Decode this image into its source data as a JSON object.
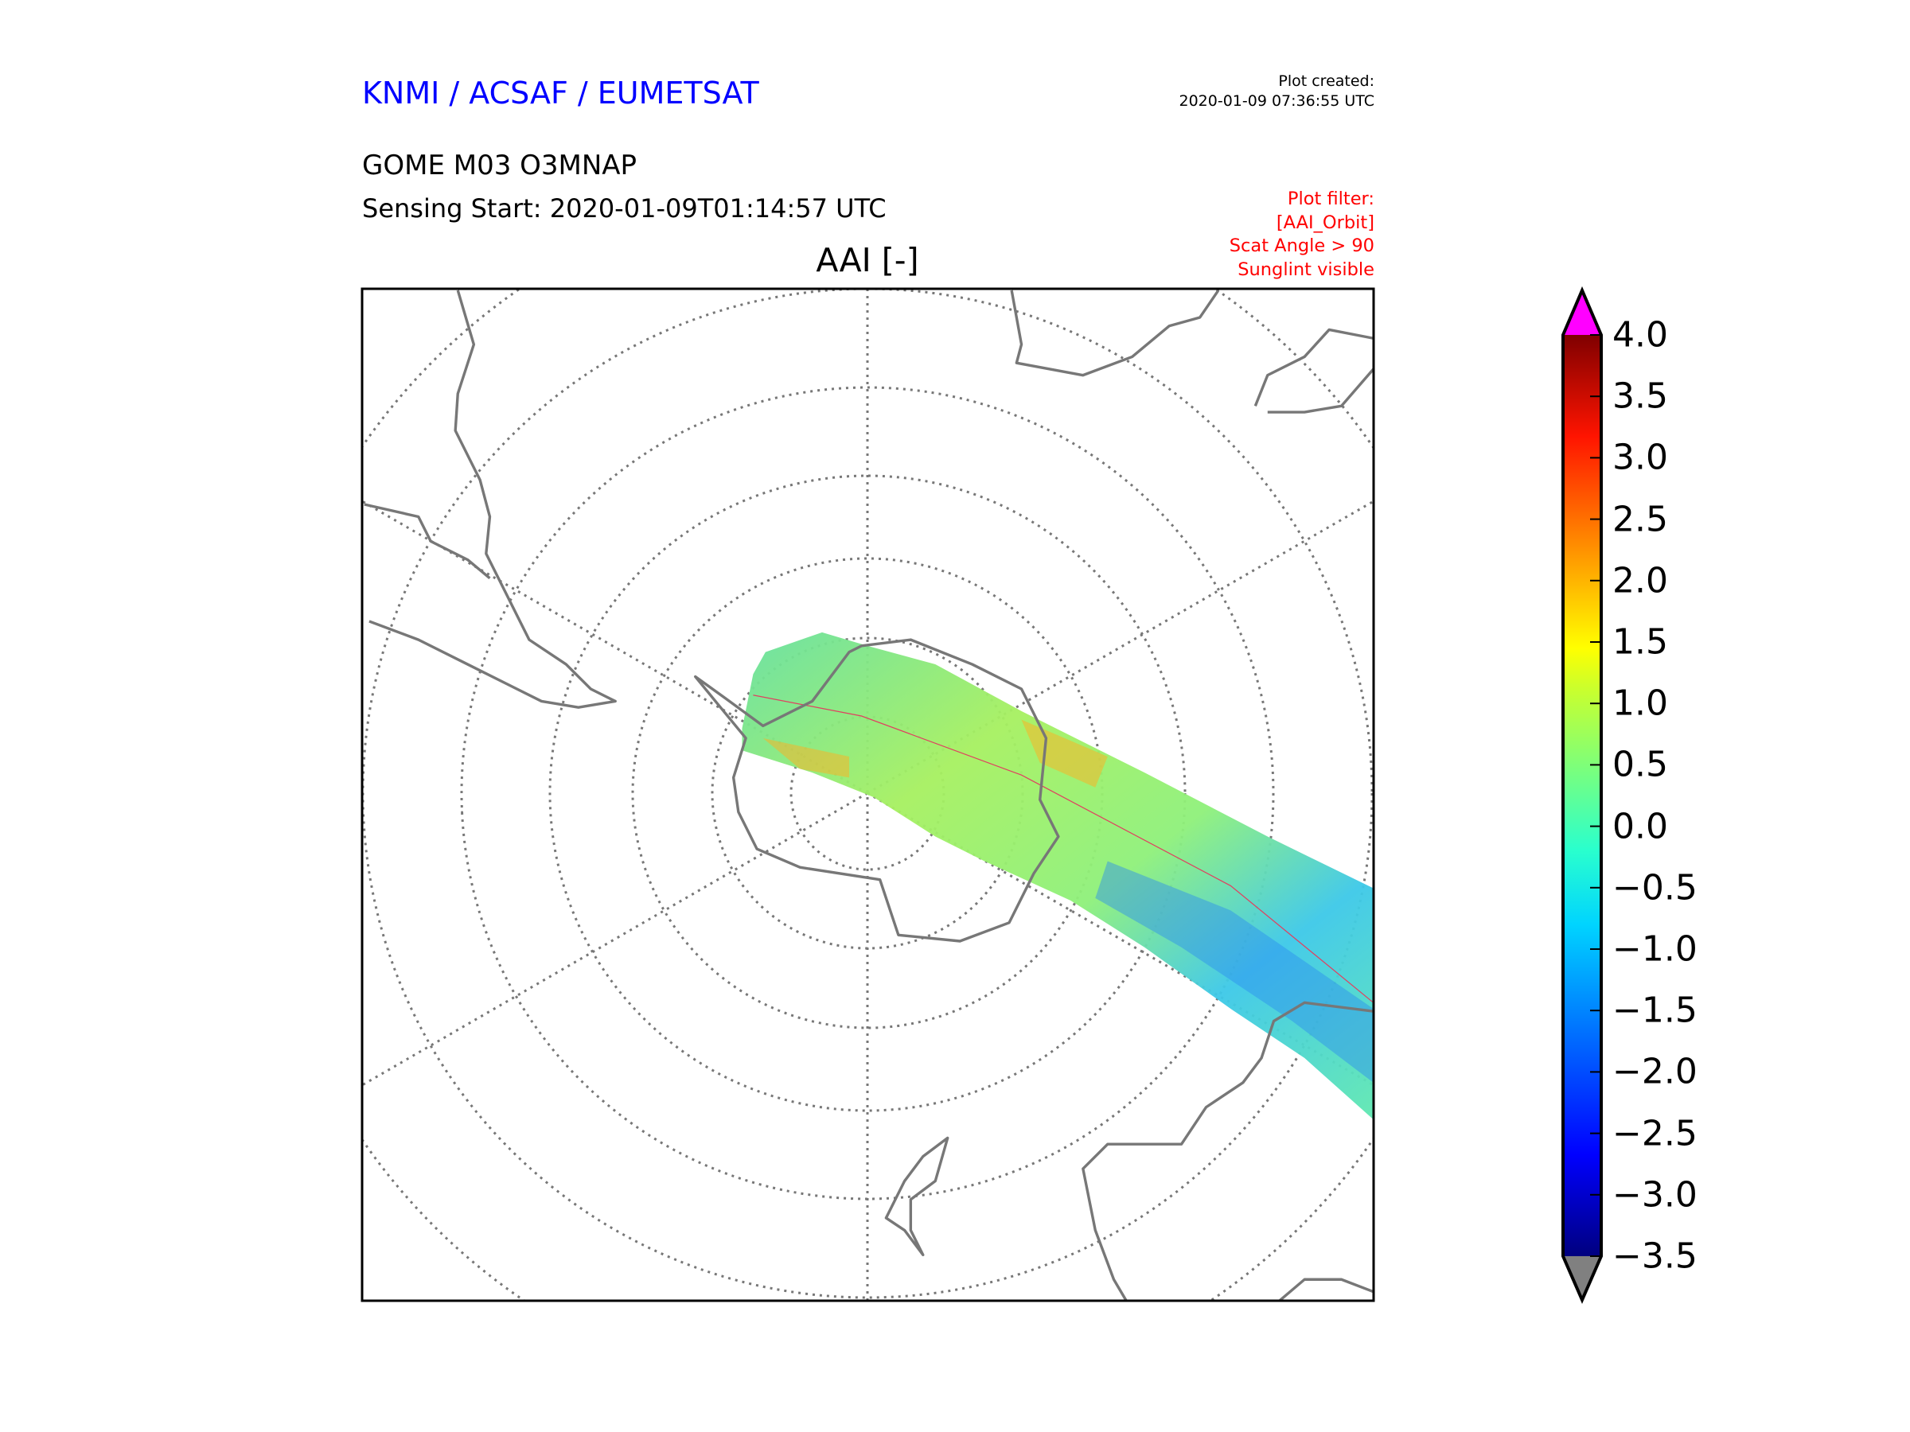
{
  "header": {
    "organization": "KNMI / ACSAF / EUMETSAT",
    "created_label": "Plot created:",
    "created_time": "2020-01-09 07:36:55 UTC",
    "product": "GOME M03 O3MNAP",
    "sensing_start": "Sensing Start: 2020-01-09T01:14:57 UTC",
    "filter": [
      "Plot filter:",
      "[AAI_Orbit]",
      "Scat Angle > 90",
      "Sunglint visible"
    ]
  },
  "chart_data": {
    "type": "heatmap",
    "title": "AAI [-]",
    "projection": "south polar stereographic",
    "colorbar": {
      "min": -3.5,
      "max": 4.0,
      "ticks": [
        "4.0",
        "3.5",
        "3.0",
        "2.5",
        "2.0",
        "1.5",
        "1.0",
        "0.5",
        "0.0",
        "−0.5",
        "−1.0",
        "−1.5",
        "−2.0",
        "−2.5",
        "−3.0",
        "−3.5"
      ],
      "over_color": "#ff00ff",
      "under_color": "#808080",
      "colormap": "jet"
    },
    "swath_typical_range": [
      -1.5,
      1.5
    ]
  },
  "colors": {
    "coast": "#777777",
    "grid": "#777777",
    "org": "#0000ff",
    "filter": "#ff0000"
  }
}
